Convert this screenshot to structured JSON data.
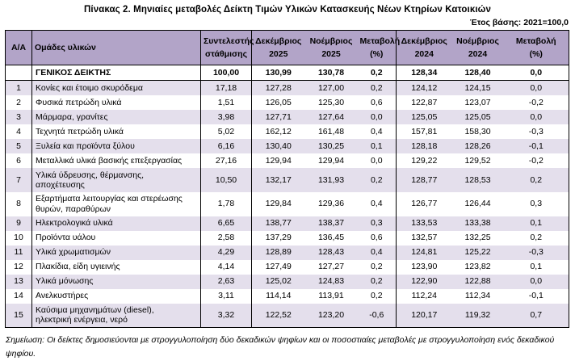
{
  "doc": {
    "title": "Πίνακας 2. Μηνιαίες μεταβολές Δείκτη Τιμών Υλικών Κατασκευής Νέων Κτηρίων Κατοικιών",
    "base_year_note": "Έτος βάσης: 2021=100,0",
    "footnote": "Σημείωση: Οι δείκτες δημοσιεύονται με στρογγυλοποίηση δύο δεκαδικών ψηφίων και οι ποσοστιαίες μεταβολές με στρογγυλοποίηση ενός δεκαδικού ψηφίου."
  },
  "colors": {
    "header_bg": "#B2A4C8",
    "stripe_bg": "#E4DFEC",
    "border": "#000000"
  },
  "table": {
    "columns": [
      {
        "label": "Α/Α"
      },
      {
        "label": "Ομάδες υλικών"
      },
      {
        "label": "Συντελεστής\nστάθμισης"
      },
      {
        "label": "Δεκέμβριος\n2025"
      },
      {
        "label": "Νοέμβριος\n2025"
      },
      {
        "label": "Μεταβολή\n(%)"
      },
      {
        "label": "Δεκέμβριος\n2024"
      },
      {
        "label": "Νοέμβριος\n2024"
      },
      {
        "label": "Μεταβολή\n(%)"
      }
    ],
    "general_row": [
      "",
      "ΓΕΝΙΚΟΣ ΔΕΙΚΤΗΣ",
      "100,00",
      "130,99",
      "130,78",
      "0,2",
      "128,34",
      "128,40",
      "0,0"
    ],
    "rows": [
      [
        "1",
        "Κονίες και έτοιμο σκυρόδεμα",
        "17,18",
        "127,28",
        "127,00",
        "0,2",
        "124,12",
        "124,15",
        "0,0"
      ],
      [
        "2",
        "Φυσικά πετρώδη υλικά",
        "1,51",
        "126,05",
        "125,30",
        "0,6",
        "122,87",
        "123,07",
        "-0,2"
      ],
      [
        "3",
        "Μάρμαρα, γρανίτες",
        "3,98",
        "127,71",
        "127,64",
        "0,0",
        "125,05",
        "125,05",
        "0,0"
      ],
      [
        "4",
        "Τεχνητά πετρώδη υλικά",
        "5,02",
        "162,12",
        "161,48",
        "0,4",
        "157,81",
        "158,30",
        "-0,3"
      ],
      [
        "5",
        "Ξυλεία και προϊόντα ξύλου",
        "6,16",
        "130,40",
        "130,25",
        "0,1",
        "128,18",
        "128,26",
        "-0,1"
      ],
      [
        "6",
        "Μεταλλικά υλικά βασικής επεξεργασίας",
        "27,16",
        "129,94",
        "129,94",
        "0,0",
        "129,22",
        "129,52",
        "-0,2"
      ],
      [
        "7",
        "Υλικά ύδρευσης, θέρμανσης,\nαποχέτευσης",
        "10,50",
        "132,17",
        "131,93",
        "0,2",
        "128,77",
        "128,53",
        "0,2"
      ],
      [
        "8",
        "Εξαρτήματα λειτουργίας και στερέωσης\nθυρών, παραθύρων",
        "1,78",
        "129,84",
        "129,36",
        "0,4",
        "126,77",
        "126,44",
        "0,3"
      ],
      [
        "9",
        "Ηλεκτρολογικά υλικά",
        "6,65",
        "138,77",
        "138,37",
        "0,3",
        "133,53",
        "133,38",
        "0,1"
      ],
      [
        "10",
        "Προϊόντα υάλου",
        "2,58",
        "137,29",
        "136,45",
        "0,6",
        "132,57",
        "132,25",
        "0,2"
      ],
      [
        "11",
        "Υλικά χρωματισμών",
        "4,29",
        "128,89",
        "128,43",
        "0,4",
        "124,81",
        "125,22",
        "-0,3"
      ],
      [
        "12",
        "Πλακίδια, είδη υγιεινής",
        "4,14",
        "127,49",
        "127,27",
        "0,2",
        "123,90",
        "123,82",
        "0,1"
      ],
      [
        "13",
        "Υλικά μόνωσης",
        "2,63",
        "125,02",
        "124,83",
        "0,2",
        "122,90",
        "122,88",
        "0,0"
      ],
      [
        "14",
        "Ανελκυστήρες",
        "3,11",
        "114,14",
        "113,91",
        "0,2",
        "112,24",
        "112,34",
        "-0,1"
      ],
      [
        "15",
        "Καύσιμα μηχανημάτων (diesel),\nηλεκτρική ενέργεια, νερό",
        "3,32",
        "122,52",
        "123,20",
        "-0,6",
        "120,17",
        "119,32",
        "0,7"
      ]
    ]
  }
}
